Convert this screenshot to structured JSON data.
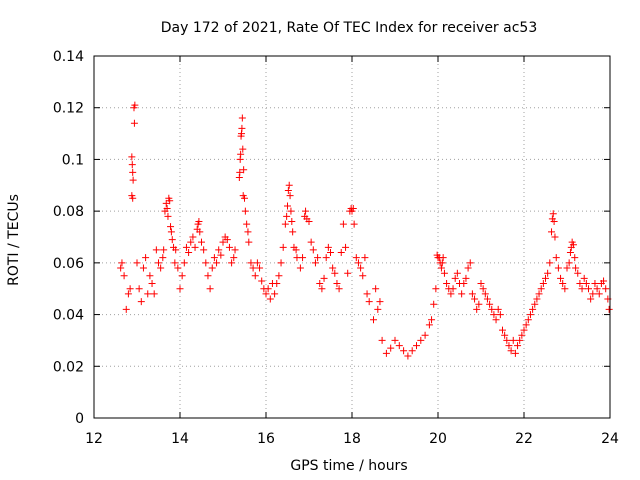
{
  "chart_data": {
    "type": "scatter",
    "title": "Day 172 of 2021, Rate Of TEC Index for receiver ac53",
    "xlabel": "GPS time / hours",
    "ylabel": "ROTI / TECUs",
    "xlim": [
      12,
      24
    ],
    "ylim": [
      0,
      0.14
    ],
    "x_ticks": [
      12,
      14,
      16,
      18,
      20,
      22,
      24
    ],
    "x_tick_labels": [
      "12",
      "14",
      "16",
      "18",
      "20",
      "22",
      "24"
    ],
    "y_ticks": [
      0,
      0.02,
      0.04,
      0.06,
      0.08,
      0.1,
      0.12,
      0.14
    ],
    "y_tick_labels": [
      "0",
      "0.02",
      "0.04",
      "0.06",
      "0.08",
      "0.1",
      "0.12",
      "0.14"
    ],
    "grid": true,
    "marker": "+",
    "marker_color": "#ff0000",
    "series": [
      {
        "name": "ROTI",
        "points": [
          [
            12.62,
            0.058
          ],
          [
            12.65,
            0.06
          ],
          [
            12.7,
            0.055
          ],
          [
            12.75,
            0.042
          ],
          [
            12.8,
            0.048
          ],
          [
            12.84,
            0.05
          ],
          [
            12.88,
            0.101
          ],
          [
            12.89,
            0.098
          ],
          [
            12.9,
            0.095
          ],
          [
            12.91,
            0.092
          ],
          [
            12.88,
            0.086
          ],
          [
            12.9,
            0.085
          ],
          [
            12.93,
            0.12
          ],
          [
            12.95,
            0.121
          ],
          [
            12.94,
            0.114
          ],
          [
            13.0,
            0.06
          ],
          [
            13.05,
            0.05
          ],
          [
            13.1,
            0.045
          ],
          [
            13.15,
            0.058
          ],
          [
            13.2,
            0.062
          ],
          [
            13.25,
            0.048
          ],
          [
            13.3,
            0.055
          ],
          [
            13.35,
            0.052
          ],
          [
            13.4,
            0.048
          ],
          [
            13.45,
            0.065
          ],
          [
            13.5,
            0.06
          ],
          [
            13.55,
            0.058
          ],
          [
            13.6,
            0.062
          ],
          [
            13.62,
            0.065
          ],
          [
            13.65,
            0.08
          ],
          [
            13.68,
            0.083
          ],
          [
            13.7,
            0.081
          ],
          [
            13.72,
            0.078
          ],
          [
            13.74,
            0.085
          ],
          [
            13.76,
            0.084
          ],
          [
            13.78,
            0.074
          ],
          [
            13.8,
            0.072
          ],
          [
            13.82,
            0.069
          ],
          [
            13.85,
            0.066
          ],
          [
            13.88,
            0.06
          ],
          [
            13.9,
            0.065
          ],
          [
            13.95,
            0.058
          ],
          [
            14.0,
            0.05
          ],
          [
            14.05,
            0.055
          ],
          [
            14.1,
            0.06
          ],
          [
            14.15,
            0.066
          ],
          [
            14.2,
            0.064
          ],
          [
            14.25,
            0.068
          ],
          [
            14.3,
            0.07
          ],
          [
            14.35,
            0.066
          ],
          [
            14.4,
            0.073
          ],
          [
            14.42,
            0.075
          ],
          [
            14.44,
            0.076
          ],
          [
            14.46,
            0.072
          ],
          [
            14.5,
            0.068
          ],
          [
            14.55,
            0.065
          ],
          [
            14.6,
            0.06
          ],
          [
            14.65,
            0.055
          ],
          [
            14.7,
            0.05
          ],
          [
            14.75,
            0.058
          ],
          [
            14.8,
            0.062
          ],
          [
            14.85,
            0.06
          ],
          [
            14.9,
            0.065
          ],
          [
            14.95,
            0.063
          ],
          [
            15.0,
            0.068
          ],
          [
            15.05,
            0.07
          ],
          [
            15.1,
            0.069
          ],
          [
            15.15,
            0.066
          ],
          [
            15.2,
            0.06
          ],
          [
            15.25,
            0.062
          ],
          [
            15.28,
            0.065
          ],
          [
            15.38,
            0.093
          ],
          [
            15.39,
            0.095
          ],
          [
            15.4,
            0.1
          ],
          [
            15.41,
            0.102
          ],
          [
            15.42,
            0.109
          ],
          [
            15.43,
            0.11
          ],
          [
            15.44,
            0.112
          ],
          [
            15.45,
            0.116
          ],
          [
            15.46,
            0.104
          ],
          [
            15.48,
            0.096
          ],
          [
            15.47,
            0.086
          ],
          [
            15.5,
            0.085
          ],
          [
            15.52,
            0.08
          ],
          [
            15.55,
            0.075
          ],
          [
            15.58,
            0.072
          ],
          [
            15.6,
            0.068
          ],
          [
            15.65,
            0.06
          ],
          [
            15.7,
            0.058
          ],
          [
            15.75,
            0.055
          ],
          [
            15.8,
            0.06
          ],
          [
            15.85,
            0.058
          ],
          [
            15.9,
            0.053
          ],
          [
            15.95,
            0.05
          ],
          [
            16.0,
            0.048
          ],
          [
            16.05,
            0.05
          ],
          [
            16.1,
            0.046
          ],
          [
            16.15,
            0.052
          ],
          [
            16.2,
            0.048
          ],
          [
            16.25,
            0.052
          ],
          [
            16.3,
            0.055
          ],
          [
            16.35,
            0.06
          ],
          [
            16.4,
            0.066
          ],
          [
            16.45,
            0.075
          ],
          [
            16.48,
            0.078
          ],
          [
            16.5,
            0.082
          ],
          [
            16.52,
            0.088
          ],
          [
            16.54,
            0.09
          ],
          [
            16.56,
            0.086
          ],
          [
            16.58,
            0.08
          ],
          [
            16.6,
            0.076
          ],
          [
            16.62,
            0.072
          ],
          [
            16.65,
            0.066
          ],
          [
            16.7,
            0.065
          ],
          [
            16.72,
            0.062
          ],
          [
            16.8,
            0.058
          ],
          [
            16.85,
            0.062
          ],
          [
            16.9,
            0.078
          ],
          [
            16.92,
            0.08
          ],
          [
            16.95,
            0.077
          ],
          [
            17.0,
            0.076
          ],
          [
            17.05,
            0.068
          ],
          [
            17.1,
            0.065
          ],
          [
            17.15,
            0.06
          ],
          [
            17.2,
            0.062
          ],
          [
            17.25,
            0.052
          ],
          [
            17.3,
            0.05
          ],
          [
            17.35,
            0.054
          ],
          [
            17.4,
            0.062
          ],
          [
            17.45,
            0.066
          ],
          [
            17.5,
            0.064
          ],
          [
            17.55,
            0.058
          ],
          [
            17.6,
            0.056
          ],
          [
            17.65,
            0.052
          ],
          [
            17.7,
            0.05
          ],
          [
            17.75,
            0.064
          ],
          [
            17.8,
            0.075
          ],
          [
            17.85,
            0.066
          ],
          [
            17.9,
            0.056
          ],
          [
            17.95,
            0.08
          ],
          [
            17.98,
            0.081
          ],
          [
            18.0,
            0.08
          ],
          [
            18.03,
            0.081
          ],
          [
            18.05,
            0.075
          ],
          [
            18.1,
            0.062
          ],
          [
            18.15,
            0.06
          ],
          [
            18.2,
            0.058
          ],
          [
            18.25,
            0.055
          ],
          [
            18.3,
            0.062
          ],
          [
            18.35,
            0.048
          ],
          [
            18.4,
            0.045
          ],
          [
            18.5,
            0.038
          ],
          [
            18.55,
            0.05
          ],
          [
            18.6,
            0.042
          ],
          [
            18.65,
            0.045
          ],
          [
            18.7,
            0.03
          ],
          [
            18.8,
            0.025
          ],
          [
            18.9,
            0.027
          ],
          [
            19.0,
            0.03
          ],
          [
            19.1,
            0.028
          ],
          [
            19.2,
            0.026
          ],
          [
            19.3,
            0.024
          ],
          [
            19.4,
            0.026
          ],
          [
            19.5,
            0.028
          ],
          [
            19.6,
            0.03
          ],
          [
            19.7,
            0.032
          ],
          [
            19.8,
            0.036
          ],
          [
            19.85,
            0.038
          ],
          [
            19.9,
            0.044
          ],
          [
            19.95,
            0.05
          ],
          [
            19.98,
            0.063
          ],
          [
            20.0,
            0.062
          ],
          [
            20.03,
            0.062
          ],
          [
            20.05,
            0.06
          ],
          [
            20.08,
            0.058
          ],
          [
            20.1,
            0.06
          ],
          [
            20.12,
            0.062
          ],
          [
            20.15,
            0.056
          ],
          [
            20.2,
            0.052
          ],
          [
            20.25,
            0.05
          ],
          [
            20.3,
            0.048
          ],
          [
            20.35,
            0.05
          ],
          [
            20.4,
            0.054
          ],
          [
            20.45,
            0.056
          ],
          [
            20.5,
            0.052
          ],
          [
            20.55,
            0.048
          ],
          [
            20.6,
            0.052
          ],
          [
            20.65,
            0.054
          ],
          [
            20.7,
            0.058
          ],
          [
            20.75,
            0.06
          ],
          [
            20.8,
            0.048
          ],
          [
            20.85,
            0.046
          ],
          [
            20.9,
            0.042
          ],
          [
            20.95,
            0.044
          ],
          [
            21.0,
            0.052
          ],
          [
            21.05,
            0.05
          ],
          [
            21.1,
            0.048
          ],
          [
            21.15,
            0.046
          ],
          [
            21.2,
            0.044
          ],
          [
            21.25,
            0.042
          ],
          [
            21.3,
            0.04
          ],
          [
            21.35,
            0.038
          ],
          [
            21.4,
            0.042
          ],
          [
            21.45,
            0.04
          ],
          [
            21.5,
            0.034
          ],
          [
            21.55,
            0.032
          ],
          [
            21.6,
            0.03
          ],
          [
            21.65,
            0.028
          ],
          [
            21.7,
            0.026
          ],
          [
            21.75,
            0.03
          ],
          [
            21.8,
            0.025
          ],
          [
            21.85,
            0.028
          ],
          [
            21.9,
            0.03
          ],
          [
            21.95,
            0.032
          ],
          [
            22.0,
            0.034
          ],
          [
            22.05,
            0.036
          ],
          [
            22.1,
            0.038
          ],
          [
            22.15,
            0.04
          ],
          [
            22.2,
            0.042
          ],
          [
            22.25,
            0.044
          ],
          [
            22.3,
            0.046
          ],
          [
            22.35,
            0.048
          ],
          [
            22.4,
            0.05
          ],
          [
            22.45,
            0.052
          ],
          [
            22.5,
            0.054
          ],
          [
            22.55,
            0.056
          ],
          [
            22.6,
            0.06
          ],
          [
            22.64,
            0.072
          ],
          [
            22.66,
            0.077
          ],
          [
            22.68,
            0.079
          ],
          [
            22.7,
            0.076
          ],
          [
            22.72,
            0.07
          ],
          [
            22.75,
            0.062
          ],
          [
            22.8,
            0.058
          ],
          [
            22.85,
            0.054
          ],
          [
            22.9,
            0.052
          ],
          [
            22.95,
            0.05
          ],
          [
            23.0,
            0.058
          ],
          [
            23.05,
            0.06
          ],
          [
            23.08,
            0.064
          ],
          [
            23.1,
            0.066
          ],
          [
            23.12,
            0.068
          ],
          [
            23.15,
            0.067
          ],
          [
            23.18,
            0.062
          ],
          [
            23.2,
            0.058
          ],
          [
            23.25,
            0.056
          ],
          [
            23.3,
            0.052
          ],
          [
            23.35,
            0.05
          ],
          [
            23.4,
            0.054
          ],
          [
            23.45,
            0.052
          ],
          [
            23.5,
            0.05
          ],
          [
            23.55,
            0.046
          ],
          [
            23.6,
            0.048
          ],
          [
            23.65,
            0.052
          ],
          [
            23.7,
            0.05
          ],
          [
            23.75,
            0.048
          ],
          [
            23.8,
            0.052
          ],
          [
            23.85,
            0.053
          ],
          [
            23.9,
            0.05
          ],
          [
            23.95,
            0.046
          ],
          [
            23.98,
            0.042
          ]
        ]
      }
    ]
  }
}
